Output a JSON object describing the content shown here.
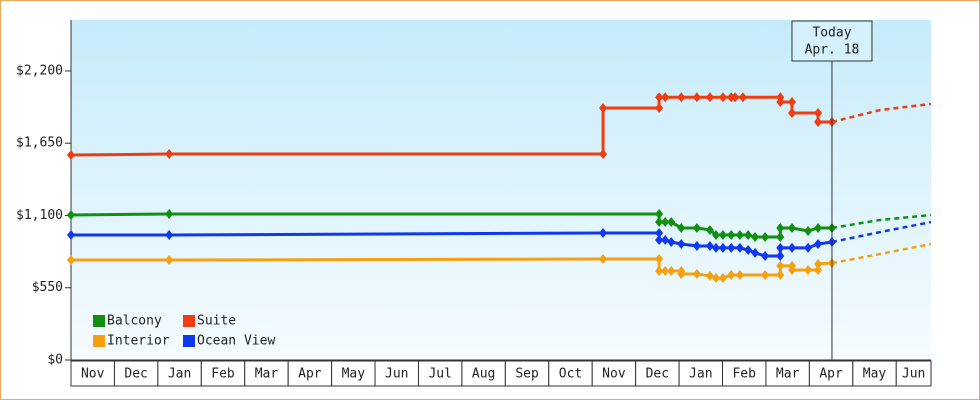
{
  "chart_data": {
    "type": "line",
    "annotation": {
      "x": 17.52,
      "lines": [
        "Today",
        "Apr. 18"
      ]
    },
    "xlim": [
      0,
      19.8
    ],
    "xticks": [
      {
        "value": 0.5,
        "label": "Nov"
      },
      {
        "value": 1.5,
        "label": "Dec"
      },
      {
        "value": 2.5,
        "label": "Jan"
      },
      {
        "value": 3.5,
        "label": "Feb"
      },
      {
        "value": 4.5,
        "label": "Mar"
      },
      {
        "value": 5.5,
        "label": "Apr"
      },
      {
        "value": 6.5,
        "label": "May"
      },
      {
        "value": 7.5,
        "label": "Jun"
      },
      {
        "value": 8.5,
        "label": "Jul"
      },
      {
        "value": 9.5,
        "label": "Aug"
      },
      {
        "value": 10.5,
        "label": "Sep"
      },
      {
        "value": 11.5,
        "label": "Oct"
      },
      {
        "value": 12.5,
        "label": "Nov"
      },
      {
        "value": 13.5,
        "label": "Dec"
      },
      {
        "value": 14.5,
        "label": "Jan"
      },
      {
        "value": 15.5,
        "label": "Feb"
      },
      {
        "value": 16.5,
        "label": "Mar"
      },
      {
        "value": 17.5,
        "label": "Apr"
      },
      {
        "value": 18.5,
        "label": "May"
      },
      {
        "value": 19.5,
        "label": "Jun"
      }
    ],
    "ylim": [
      0,
      2588
    ],
    "yticks": [
      {
        "value": 0,
        "label": "$0"
      },
      {
        "value": 550,
        "label": "$550"
      },
      {
        "value": 1100,
        "label": "$1,100"
      },
      {
        "value": 1650,
        "label": "$1,650"
      },
      {
        "value": 2200,
        "label": "$2,200"
      }
    ],
    "legend": "bottom-left",
    "series": [
      {
        "name": "Balcony",
        "color": "#109010",
        "x": [
          0,
          2.26,
          13.54,
          13.54,
          13.68,
          13.82,
          14.05,
          14.41,
          14.71,
          14.85,
          15.01,
          15.2,
          15.4,
          15.59,
          15.75,
          15.98,
          16.33,
          16.33,
          16.6,
          16.97,
          17.2,
          17.52
        ],
        "values": [
          1104,
          1111,
          1111,
          1050,
          1050,
          1050,
          1005,
          1005,
          990,
          951,
          951,
          951,
          951,
          951,
          936,
          936,
          936,
          1005,
          1005,
          982,
          1005,
          1005
        ],
        "forecast": {
          "x": [
            17.52,
            18.63,
            19.8
          ],
          "values": [
            1005,
            1066,
            1104
          ]
        }
      },
      {
        "name": "Suite",
        "color": "#f03c10",
        "x": [
          0,
          2.26,
          12.25,
          12.25,
          13.54,
          13.54,
          13.68,
          14.05,
          14.41,
          14.71,
          15.01,
          15.2,
          15.29,
          15.47,
          16.33,
          16.33,
          16.6,
          16.6,
          17.2,
          17.2,
          17.52
        ],
        "values": [
          1560,
          1568,
          1568,
          1918,
          1918,
          2000,
          2000,
          2000,
          2000,
          2000,
          2000,
          2000,
          2000,
          2000,
          2000,
          1964,
          1964,
          1880,
          1880,
          1812,
          1812
        ],
        "forecast": {
          "x": [
            17.52,
            18.63,
            19.8
          ],
          "values": [
            1812,
            1903,
            1949
          ]
        }
      },
      {
        "name": "Interior",
        "color": "#f5a010",
        "x": [
          0,
          2.26,
          12.25,
          13.54,
          13.54,
          13.68,
          13.82,
          14.05,
          14.05,
          14.41,
          14.71,
          14.85,
          15.01,
          15.2,
          15.4,
          15.98,
          16.33,
          16.33,
          16.6,
          16.6,
          16.97,
          17.2,
          17.2,
          17.52
        ],
        "values": [
          761,
          761,
          769,
          769,
          677,
          677,
          677,
          677,
          655,
          655,
          640,
          624,
          624,
          647,
          647,
          647,
          647,
          716,
          716,
          685,
          685,
          685,
          731,
          738
        ],
        "forecast": {
          "x": [
            17.52,
            18.63,
            19.8
          ],
          "values": [
            738,
            807,
            883
          ]
        }
      },
      {
        "name": "Ocean View",
        "color": "#1038f0",
        "x": [
          0,
          2.26,
          12.25,
          13.54,
          13.54,
          13.68,
          13.82,
          14.05,
          14.41,
          14.71,
          14.85,
          15.01,
          15.2,
          15.4,
          15.59,
          15.75,
          15.98,
          16.33,
          16.33,
          16.6,
          16.97,
          17.2,
          17.52
        ],
        "values": [
          951,
          951,
          967,
          967,
          913,
          913,
          898,
          883,
          868,
          868,
          853,
          853,
          853,
          853,
          837,
          815,
          792,
          792,
          853,
          853,
          853,
          883,
          898
        ],
        "forecast": {
          "x": [
            17.52,
            18.63,
            19.8
          ],
          "values": [
            898,
            974,
            1050
          ]
        }
      }
    ]
  }
}
